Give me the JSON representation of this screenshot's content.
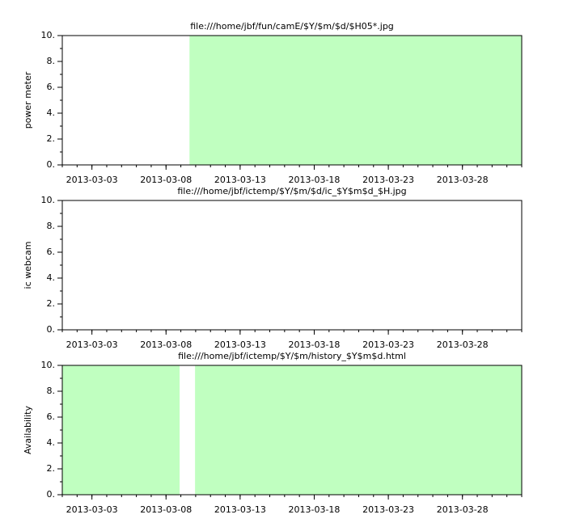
{
  "chart_data": [
    {
      "type": "timeline",
      "title": "file:///home/jbf/fun/camE/$Y/$m/$d/$H05*.jpg",
      "ylabel": "power meter",
      "xlim": [
        "2013-03-01 00:00",
        "2013-04-01 00:00"
      ],
      "xticks": [
        "2013-03-03",
        "2013-03-08",
        "2013-03-13",
        "2013-03-18",
        "2013-03-23",
        "2013-03-28"
      ],
      "ylim": [
        0,
        10
      ],
      "yticks": [
        {
          "value": 0,
          "label": "0."
        },
        {
          "value": 2,
          "label": "2."
        },
        {
          "value": 4,
          "label": "4."
        },
        {
          "value": 6,
          "label": "6."
        },
        {
          "value": 8,
          "label": "8."
        },
        {
          "value": 10,
          "label": "10."
        }
      ],
      "color": "#c0ffc0",
      "spans": [
        {
          "start": "2013-03-09 14:00",
          "end": "2013-04-01 00:00",
          "value": 10
        }
      ]
    },
    {
      "type": "timeline",
      "title": "file:///home/jbf/ictemp/$Y/$m/$d/ic_$Y$m$d_$H.jpg",
      "ylabel": "ic webcam",
      "xlim": [
        "2013-03-01 00:00",
        "2013-04-01 00:00"
      ],
      "xticks": [
        "2013-03-03",
        "2013-03-08",
        "2013-03-13",
        "2013-03-18",
        "2013-03-23",
        "2013-03-28"
      ],
      "ylim": [
        0,
        10
      ],
      "yticks": [
        {
          "value": 0,
          "label": "0."
        },
        {
          "value": 2,
          "label": "2."
        },
        {
          "value": 4,
          "label": "4."
        },
        {
          "value": 6,
          "label": "6."
        },
        {
          "value": 8,
          "label": "8."
        },
        {
          "value": 10,
          "label": "10."
        }
      ],
      "color": "#c0ffc0",
      "spans": []
    },
    {
      "type": "timeline",
      "title": "file:///home/jbf/ictemp/$Y/$m/history_$Y$m$d.html",
      "ylabel": "Availability",
      "xlim": [
        "2013-03-01 00:00",
        "2013-04-01 00:00"
      ],
      "xticks": [
        "2013-03-03",
        "2013-03-08",
        "2013-03-13",
        "2013-03-18",
        "2013-03-23",
        "2013-03-28"
      ],
      "ylim": [
        0,
        10
      ],
      "yticks": [
        {
          "value": 0,
          "label": "0."
        },
        {
          "value": 2,
          "label": "2."
        },
        {
          "value": 4,
          "label": "4."
        },
        {
          "value": 6,
          "label": "6."
        },
        {
          "value": 8,
          "label": "8."
        },
        {
          "value": 10,
          "label": "10."
        }
      ],
      "color": "#c0ffc0",
      "spans": [
        {
          "start": "2013-03-01 00:00",
          "end": "2013-03-08 22:00",
          "value": 10
        },
        {
          "start": "2013-03-09 23:00",
          "end": "2013-04-01 00:00",
          "value": 10
        }
      ]
    }
  ]
}
